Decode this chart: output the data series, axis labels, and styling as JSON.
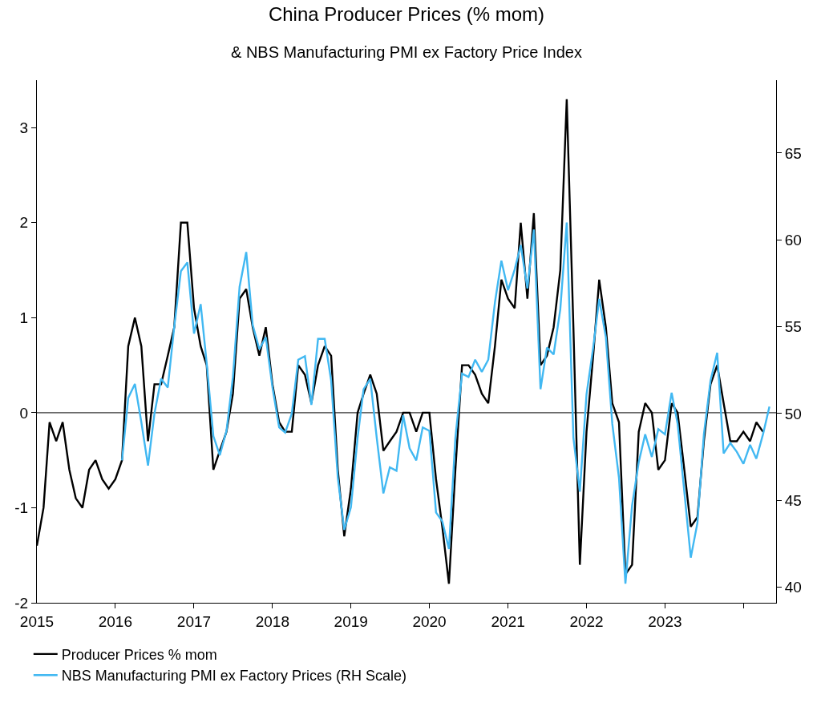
{
  "chart_data": {
    "type": "line",
    "title": "China Producer Prices (% mom)",
    "subtitle": "& NBS Manufacturing PMI ex Factory Price Index",
    "x": [
      "2015-01",
      "2015-02",
      "2015-03",
      "2015-04",
      "2015-05",
      "2015-06",
      "2015-07",
      "2015-08",
      "2015-09",
      "2015-10",
      "2015-11",
      "2015-12",
      "2016-01",
      "2016-02",
      "2016-03",
      "2016-04",
      "2016-05",
      "2016-06",
      "2016-07",
      "2016-08",
      "2016-09",
      "2016-10",
      "2016-11",
      "2016-12",
      "2017-01",
      "2017-02",
      "2017-03",
      "2017-04",
      "2017-05",
      "2017-06",
      "2017-07",
      "2017-08",
      "2017-09",
      "2017-10",
      "2017-11",
      "2017-12",
      "2018-01",
      "2018-02",
      "2018-03",
      "2018-04",
      "2018-05",
      "2018-06",
      "2018-07",
      "2018-08",
      "2018-09",
      "2018-10",
      "2018-11",
      "2018-12",
      "2019-01",
      "2019-02",
      "2019-03",
      "2019-04",
      "2019-05",
      "2019-06",
      "2019-07",
      "2019-08",
      "2019-09",
      "2019-10",
      "2019-11",
      "2019-12",
      "2020-01",
      "2020-02",
      "2020-03",
      "2020-04",
      "2020-05",
      "2020-06",
      "2020-07",
      "2020-08",
      "2020-09",
      "2020-10",
      "2020-11",
      "2020-12",
      "2021-01",
      "2021-02",
      "2021-03",
      "2021-04",
      "2021-05",
      "2021-06",
      "2021-07",
      "2021-08",
      "2021-09",
      "2021-10",
      "2021-11",
      "2021-12",
      "2022-01",
      "2022-02",
      "2022-03",
      "2022-04",
      "2022-05",
      "2022-06",
      "2022-07",
      "2022-08",
      "2022-09",
      "2022-10",
      "2022-11",
      "2022-12",
      "2023-01",
      "2023-02",
      "2023-03",
      "2023-04",
      "2023-05",
      "2023-06",
      "2023-07",
      "2023-08",
      "2023-09",
      "2023-10",
      "2023-11",
      "2023-12",
      "2024-01",
      "2024-02",
      "2024-03",
      "2024-04",
      "2024-05"
    ],
    "series": [
      {
        "name": "Producer Prices % mom",
        "color": "#000000",
        "values": [
          -1.4,
          -1.0,
          -0.1,
          -0.3,
          -0.1,
          -0.6,
          -0.9,
          -1.0,
          -0.6,
          -0.5,
          -0.7,
          -0.8,
          -0.7,
          -0.5,
          0.7,
          1.0,
          0.7,
          -0.3,
          0.3,
          0.3,
          0.6,
          0.9,
          2.0,
          2.0,
          1.1,
          0.7,
          0.5,
          -0.6,
          -0.4,
          -0.2,
          0.2,
          1.2,
          1.3,
          0.9,
          0.6,
          0.9,
          0.3,
          -0.1,
          -0.2,
          -0.2,
          0.5,
          0.4,
          0.1,
          0.5,
          0.7,
          0.6,
          -0.6,
          -1.3,
          -0.8,
          0.0,
          0.2,
          0.4,
          0.2,
          -0.4,
          -0.3,
          -0.2,
          0.0,
          0.0,
          -0.2,
          0.0,
          0.0,
          -0.7,
          -1.2,
          -1.8,
          -0.6,
          0.5,
          0.5,
          0.4,
          0.2,
          0.1,
          0.7,
          1.4,
          1.2,
          1.1,
          2.0,
          1.2,
          2.1,
          0.5,
          0.6,
          0.9,
          1.5,
          3.3,
          0.9,
          -1.6,
          -0.2,
          0.6,
          1.4,
          0.9,
          0.1,
          -0.1,
          -1.7,
          -1.6,
          -0.2,
          0.1,
          0.0,
          -0.6,
          -0.5,
          0.1,
          0.0,
          -0.6,
          -1.2,
          -1.1,
          -0.3,
          0.3,
          0.5,
          0.1,
          -0.3,
          -0.3,
          -0.2,
          -0.3,
          -0.1,
          -0.2,
          null
        ]
      },
      {
        "name": "NBS Manufacturing PMI ex Factory Prices (RH Scale)",
        "color": "#41b8f2",
        "axis": "y2",
        "values": [
          null,
          null,
          null,
          null,
          null,
          null,
          null,
          null,
          null,
          null,
          null,
          null,
          null,
          47.3,
          50.9,
          51.7,
          49.5,
          47.0,
          50.0,
          52.0,
          51.5,
          55.0,
          58.2,
          58.7,
          54.6,
          56.3,
          52.9,
          48.7,
          47.6,
          49.0,
          52.1,
          57.3,
          59.3,
          55.1,
          53.7,
          54.4,
          51.5,
          49.2,
          48.9,
          50.0,
          53.1,
          53.3,
          50.5,
          54.3,
          54.3,
          51.9,
          46.3,
          43.3,
          44.6,
          48.6,
          51.4,
          52.0,
          48.6,
          45.4,
          46.9,
          46.7,
          49.9,
          48.0,
          47.3,
          49.2,
          49.0,
          44.3,
          43.8,
          42.2,
          48.6,
          52.3,
          52.1,
          53.1,
          52.4,
          53.1,
          56.4,
          58.8,
          57.1,
          58.3,
          59.7,
          57.2,
          60.6,
          51.4,
          53.8,
          53.4,
          56.0,
          61.0,
          48.6,
          45.5,
          51.1,
          53.8,
          56.6,
          54.4,
          49.4,
          46.3,
          40.2,
          44.7,
          47.2,
          48.8,
          47.5,
          49.1,
          48.8,
          51.2,
          49.4,
          45.5,
          41.7,
          43.7,
          48.8,
          51.9,
          53.5,
          47.7,
          48.3,
          47.8,
          47.1,
          48.2,
          47.4,
          48.8,
          50.4
        ]
      }
    ],
    "xlim": [
      "2015-01",
      "2024-06"
    ],
    "xticks": [
      {
        "value": "2015-01",
        "label": "2015"
      },
      {
        "value": "2016-01",
        "label": "2016"
      },
      {
        "value": "2017-01",
        "label": "2017"
      },
      {
        "value": "2018-01",
        "label": "2018"
      },
      {
        "value": "2019-01",
        "label": "2019"
      },
      {
        "value": "2020-01",
        "label": "2020"
      },
      {
        "value": "2021-01",
        "label": "2021"
      },
      {
        "value": "2022-01",
        "label": "2022"
      },
      {
        "value": "2023-01",
        "label": "2023"
      },
      {
        "value": "2024-01",
        "label": null
      }
    ],
    "ylim": [
      -2,
      3.5
    ],
    "yticks": [
      -2,
      -1,
      0,
      1,
      2,
      3
    ],
    "y2lim": [
      39.1,
      69.2
    ],
    "y2ticks": [
      40,
      45,
      50,
      55,
      60,
      65
    ],
    "ref_lines": [
      {
        "axis": "y",
        "value": 0,
        "color": "#000000"
      }
    ],
    "legend": "bottom left",
    "grid": false,
    "marker": "none",
    "line_style": "solid"
  }
}
